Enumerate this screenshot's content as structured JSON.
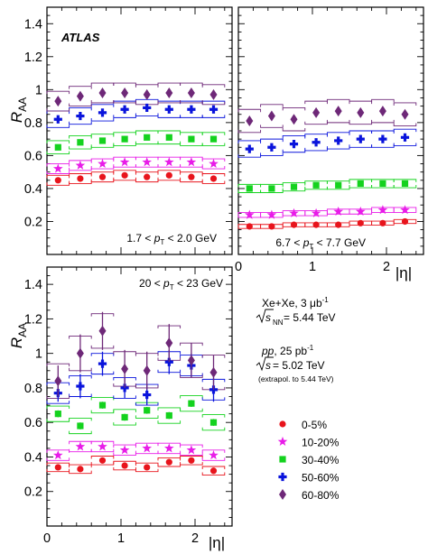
{
  "figure": {
    "experiment_label": "ATLAS",
    "y_axis_label": "R",
    "y_axis_sub": "AA",
    "x_axis_label": "|η|"
  },
  "info": {
    "xexe_line1": "Xe+Xe, 3 μb",
    "xexe_line1_sup": "-1",
    "xexe_line2_sqrt": "s",
    "xexe_line2_sub": "NN",
    "xexe_line2_val": " = 5.44 TeV",
    "pp_line1_italic": "pp",
    "pp_line1": ", 25 pb",
    "pp_line1_sup": "-1",
    "pp_line2_sqrt": "s",
    "pp_line2_val": " = 5.02 TeV",
    "pp_line3": "(extrapol. to 5.44 TeV)"
  },
  "colors": {
    "0-5%": "#e8141c",
    "10-20%": "#e81ce8",
    "30-40%": "#14d21e",
    "50-60%": "#0a14dc",
    "60-80%": "#6e2878"
  },
  "chart_data": [
    {
      "type": "scatter",
      "panel": "top-left",
      "pt_range_label": {
        "lo": "1.7 < ",
        "var": "p",
        "sub": "T",
        "hi": " < 2.0 GeV"
      },
      "ylim": [
        0,
        1.5
      ],
      "xlim": [
        0,
        2.5
      ],
      "x": [
        0.15,
        0.45,
        0.75,
        1.05,
        1.35,
        1.65,
        1.95,
        2.25
      ],
      "series": [
        {
          "name": "0-5%",
          "marker": "circle",
          "values": [
            0.45,
            0.46,
            0.47,
            0.48,
            0.47,
            0.48,
            0.47,
            0.46
          ],
          "stat_err": [
            0.004,
            0.004,
            0.004,
            0.004,
            0.004,
            0.004,
            0.004,
            0.004
          ],
          "sys_err": [
            0.03,
            0.03,
            0.03,
            0.03,
            0.03,
            0.03,
            0.03,
            0.03
          ]
        },
        {
          "name": "10-20%",
          "marker": "star",
          "values": [
            0.52,
            0.54,
            0.55,
            0.56,
            0.56,
            0.56,
            0.56,
            0.55
          ],
          "stat_err": [
            0.004,
            0.004,
            0.004,
            0.004,
            0.004,
            0.004,
            0.004,
            0.004
          ],
          "sys_err": [
            0.03,
            0.03,
            0.03,
            0.03,
            0.03,
            0.03,
            0.03,
            0.03
          ]
        },
        {
          "name": "30-40%",
          "marker": "square",
          "values": [
            0.65,
            0.68,
            0.69,
            0.7,
            0.71,
            0.71,
            0.7,
            0.7
          ],
          "stat_err": [
            0.005,
            0.005,
            0.005,
            0.005,
            0.005,
            0.005,
            0.005,
            0.005
          ],
          "sys_err": [
            0.04,
            0.04,
            0.04,
            0.04,
            0.04,
            0.04,
            0.04,
            0.04
          ]
        },
        {
          "name": "50-60%",
          "marker": "cross",
          "values": [
            0.82,
            0.84,
            0.86,
            0.88,
            0.89,
            0.88,
            0.88,
            0.88
          ],
          "stat_err": [
            0.006,
            0.006,
            0.006,
            0.006,
            0.006,
            0.006,
            0.006,
            0.006
          ],
          "sys_err": [
            0.05,
            0.05,
            0.05,
            0.05,
            0.05,
            0.05,
            0.05,
            0.05
          ]
        },
        {
          "name": "60-80%",
          "marker": "diamond",
          "values": [
            0.93,
            0.96,
            0.98,
            0.98,
            0.97,
            0.98,
            0.98,
            0.97
          ],
          "stat_err": [
            0.008,
            0.008,
            0.008,
            0.008,
            0.008,
            0.008,
            0.008,
            0.008
          ],
          "sys_err": [
            0.06,
            0.06,
            0.06,
            0.06,
            0.06,
            0.06,
            0.06,
            0.06
          ]
        }
      ]
    },
    {
      "type": "scatter",
      "panel": "top-right",
      "pt_range_label": {
        "lo": "6.7 < ",
        "var": "p",
        "sub": "T",
        "hi": " < 7.7 GeV"
      },
      "ylim": [
        0,
        1.5
      ],
      "xlim": [
        0,
        2.5
      ],
      "x_ticks": [
        0,
        1,
        2
      ],
      "x": [
        0.15,
        0.45,
        0.75,
        1.05,
        1.35,
        1.65,
        1.95,
        2.25
      ],
      "series": [
        {
          "name": "0-5%",
          "marker": "circle",
          "values": [
            0.17,
            0.17,
            0.18,
            0.18,
            0.18,
            0.19,
            0.19,
            0.2
          ],
          "stat_err": [
            0.003,
            0.003,
            0.003,
            0.003,
            0.003,
            0.003,
            0.003,
            0.003
          ],
          "sys_err": [
            0.012,
            0.012,
            0.012,
            0.012,
            0.012,
            0.012,
            0.012,
            0.012
          ]
        },
        {
          "name": "10-20%",
          "marker": "star",
          "values": [
            0.24,
            0.24,
            0.25,
            0.25,
            0.26,
            0.26,
            0.27,
            0.27
          ],
          "stat_err": [
            0.003,
            0.003,
            0.003,
            0.003,
            0.003,
            0.003,
            0.003,
            0.003
          ],
          "sys_err": [
            0.015,
            0.015,
            0.015,
            0.015,
            0.015,
            0.015,
            0.015,
            0.015
          ]
        },
        {
          "name": "30-40%",
          "marker": "square",
          "values": [
            0.4,
            0.4,
            0.41,
            0.42,
            0.42,
            0.43,
            0.43,
            0.43
          ],
          "stat_err": [
            0.005,
            0.005,
            0.005,
            0.005,
            0.005,
            0.005,
            0.005,
            0.005
          ],
          "sys_err": [
            0.025,
            0.025,
            0.025,
            0.025,
            0.025,
            0.025,
            0.025,
            0.025
          ]
        },
        {
          "name": "50-60%",
          "marker": "cross",
          "values": [
            0.64,
            0.65,
            0.67,
            0.68,
            0.69,
            0.7,
            0.7,
            0.71
          ],
          "stat_err": [
            0.01,
            0.01,
            0.01,
            0.01,
            0.01,
            0.01,
            0.01,
            0.01
          ],
          "sys_err": [
            0.05,
            0.05,
            0.05,
            0.05,
            0.05,
            0.05,
            0.05,
            0.05
          ]
        },
        {
          "name": "60-80%",
          "marker": "diamond",
          "values": [
            0.81,
            0.84,
            0.82,
            0.86,
            0.87,
            0.86,
            0.87,
            0.85
          ],
          "stat_err": [
            0.015,
            0.015,
            0.015,
            0.015,
            0.015,
            0.015,
            0.015,
            0.015
          ],
          "sys_err": [
            0.07,
            0.07,
            0.07,
            0.07,
            0.07,
            0.07,
            0.07,
            0.07
          ]
        }
      ]
    },
    {
      "type": "scatter",
      "panel": "bottom-left",
      "pt_range_label": {
        "lo": "20 < ",
        "var": "p",
        "sub": "T",
        "hi": " < 23 GeV"
      },
      "ylim": [
        0,
        1.5
      ],
      "xlim": [
        0,
        2.5
      ],
      "x_ticks": [
        0,
        1,
        2
      ],
      "x": [
        0.15,
        0.45,
        0.75,
        1.05,
        1.35,
        1.65,
        1.95,
        2.25
      ],
      "series": [
        {
          "name": "0-5%",
          "marker": "circle",
          "values": [
            0.34,
            0.33,
            0.38,
            0.35,
            0.34,
            0.37,
            0.38,
            0.32
          ],
          "stat_err": [
            0.01,
            0.01,
            0.01,
            0.01,
            0.01,
            0.01,
            0.01,
            0.01
          ],
          "sys_err": [
            0.025,
            0.025,
            0.025,
            0.025,
            0.025,
            0.025,
            0.025,
            0.025
          ]
        },
        {
          "name": "10-20%",
          "marker": "star",
          "values": [
            0.41,
            0.46,
            0.46,
            0.44,
            0.45,
            0.45,
            0.44,
            0.41
          ],
          "stat_err": [
            0.01,
            0.01,
            0.01,
            0.01,
            0.01,
            0.01,
            0.01,
            0.01
          ],
          "sys_err": [
            0.03,
            0.03,
            0.03,
            0.03,
            0.03,
            0.03,
            0.03,
            0.03
          ]
        },
        {
          "name": "30-40%",
          "marker": "square",
          "values": [
            0.65,
            0.58,
            0.7,
            0.63,
            0.67,
            0.64,
            0.71,
            0.6
          ],
          "stat_err": [
            0.02,
            0.02,
            0.02,
            0.02,
            0.02,
            0.02,
            0.02,
            0.02
          ],
          "sys_err": [
            0.045,
            0.045,
            0.045,
            0.045,
            0.045,
            0.045,
            0.045,
            0.045
          ]
        },
        {
          "name": "50-60%",
          "marker": "cross",
          "values": [
            0.77,
            0.81,
            0.94,
            0.8,
            0.76,
            0.95,
            0.93,
            0.79
          ],
          "stat_err": [
            0.05,
            0.07,
            0.07,
            0.06,
            0.06,
            0.07,
            0.07,
            0.07
          ],
          "sys_err": [
            0.06,
            0.06,
            0.06,
            0.06,
            0.06,
            0.06,
            0.06,
            0.06
          ]
        },
        {
          "name": "60-80%",
          "marker": "diamond",
          "values": [
            0.84,
            1.0,
            1.13,
            0.91,
            0.9,
            1.06,
            0.96,
            0.89
          ],
          "stat_err": [
            0.09,
            0.11,
            0.11,
            0.11,
            0.11,
            0.11,
            0.1,
            0.1
          ],
          "sys_err": [
            0.1,
            0.1,
            0.1,
            0.1,
            0.1,
            0.1,
            0.1,
            0.1
          ]
        }
      ]
    }
  ],
  "y_ticks": [
    0.2,
    0.4,
    0.6,
    0.8,
    1.0,
    1.2,
    1.4
  ],
  "y_tick_labels": [
    "0.2",
    "0.4",
    "0.6",
    "0.8",
    "1",
    "1.2",
    "1.4"
  ],
  "x_ticks": [
    0,
    1,
    2
  ],
  "x_tick_labels": [
    "0",
    "1",
    "2"
  ]
}
